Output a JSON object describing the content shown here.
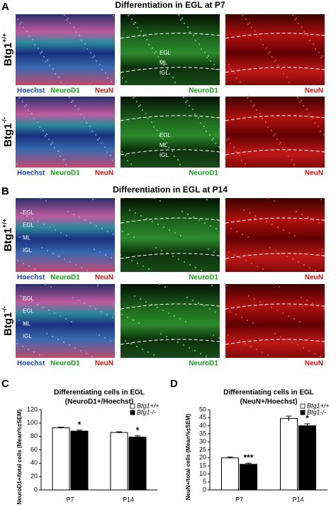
{
  "panels": [
    {
      "letter": "A",
      "title": "Differentiation in EGL at P7",
      "channels": [
        "Hoechst",
        "NeuroD1",
        "NeuN"
      ],
      "rows": [
        {
          "genotype": "Btg1",
          "sup": "+/+",
          "layers": [
            "EGL",
            "ML",
            "IGL"
          ]
        },
        {
          "genotype": "Btg1",
          "sup": "-/-",
          "layers": [
            "EGL",
            "ML",
            "IGL"
          ]
        }
      ]
    },
    {
      "letter": "B",
      "title": "Differentiation in EGL at P14",
      "channels": [
        "Hoechst",
        "NeuroD1",
        "NeuN"
      ],
      "rows": [
        {
          "genotype": "Btg1",
          "sup": "+/+",
          "layers": [
            "EGL",
            "EGL",
            "ML",
            "IGL"
          ]
        },
        {
          "genotype": "Btg1",
          "sup": "-/-",
          "layers": [
            "EGL",
            "EGL",
            "ML",
            "IGL"
          ]
        }
      ]
    }
  ],
  "chart_letters": [
    "C",
    "D"
  ],
  "chart_data": [
    {
      "type": "bar",
      "title": "Differentiating cells in EGL",
      "subtitle": "(NeuroD1+/Hoechst)",
      "y_label": "NeuroD1+/total cells (Mean%±SEM)",
      "categories": [
        "P7",
        "P14"
      ],
      "ylim": [
        0,
        120
      ],
      "yticks": [
        0,
        20,
        40,
        60,
        80,
        100,
        120
      ],
      "series": [
        {
          "name": "Btg1+/+",
          "color": "#ffffff",
          "values": [
            93,
            86
          ],
          "errors": [
            1,
            1
          ]
        },
        {
          "name": "Btg1-/-",
          "color": "#000000",
          "values": [
            88,
            79
          ],
          "errors": [
            1.5,
            2
          ],
          "significance": [
            "*",
            "*"
          ]
        }
      ]
    },
    {
      "type": "bar",
      "title": "Differentiating cells in EGL",
      "subtitle": "(NeuN+/Hoechst)",
      "y_label": "NeuN+/total cells (Mean%±SEM)",
      "categories": [
        "P7",
        "P14"
      ],
      "ylim": [
        0,
        50
      ],
      "yticks": [
        0,
        5,
        10,
        15,
        20,
        25,
        30,
        35,
        40,
        45,
        50
      ],
      "series": [
        {
          "name": "Btg1+/+",
          "color": "#ffffff",
          "values": [
            20,
            44.5
          ],
          "errors": [
            0.5,
            1.5
          ]
        },
        {
          "name": "Btg1-/-",
          "color": "#000000",
          "values": [
            16,
            40
          ],
          "errors": [
            0.7,
            1.2
          ],
          "significance": [
            "***",
            "*"
          ]
        }
      ]
    }
  ]
}
